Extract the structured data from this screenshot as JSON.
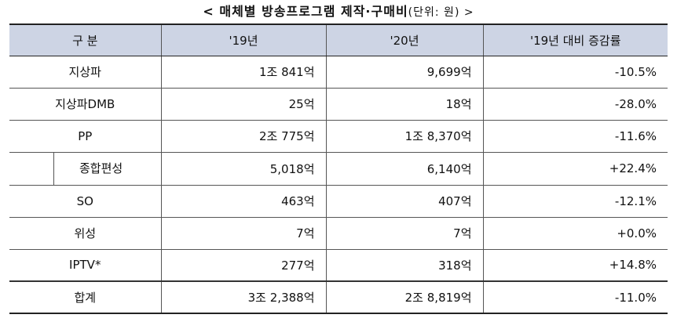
{
  "title": {
    "main": "< 매체별 방송프로그램 제작·구매비",
    "unit": "(단위: 원) >"
  },
  "headers": [
    "구  분",
    "'19년",
    "'20년",
    "'19년 대비 증감률"
  ],
  "rows": [
    {
      "label": "지상파",
      "y2019": "1조 841억",
      "y2020": "9,699억",
      "change": "-10.5%"
    },
    {
      "label": "지상파DMB",
      "y2019": "25억",
      "y2020": "18억",
      "change": "-28.0%"
    },
    {
      "label": "PP",
      "y2019": "2조 775억",
      "y2020": "1조 8,370억",
      "change": "-11.6%"
    },
    {
      "label": "종합편성",
      "y2019": "5,018억",
      "y2020": "6,140억",
      "change": "+22.4%"
    },
    {
      "label": "SO",
      "y2019": "463억",
      "y2020": "407억",
      "change": "-12.1%"
    },
    {
      "label": "위성",
      "y2019": "7억",
      "y2020": "7억",
      "change": "+0.0%"
    },
    {
      "label": "IPTV*",
      "y2019": "277억",
      "y2020": "318억",
      "change": "+14.8%"
    }
  ],
  "total": {
    "label": "합계",
    "y2019": "3조 2,388억",
    "y2020": "2조 8,819억",
    "change": "-11.0%"
  }
}
